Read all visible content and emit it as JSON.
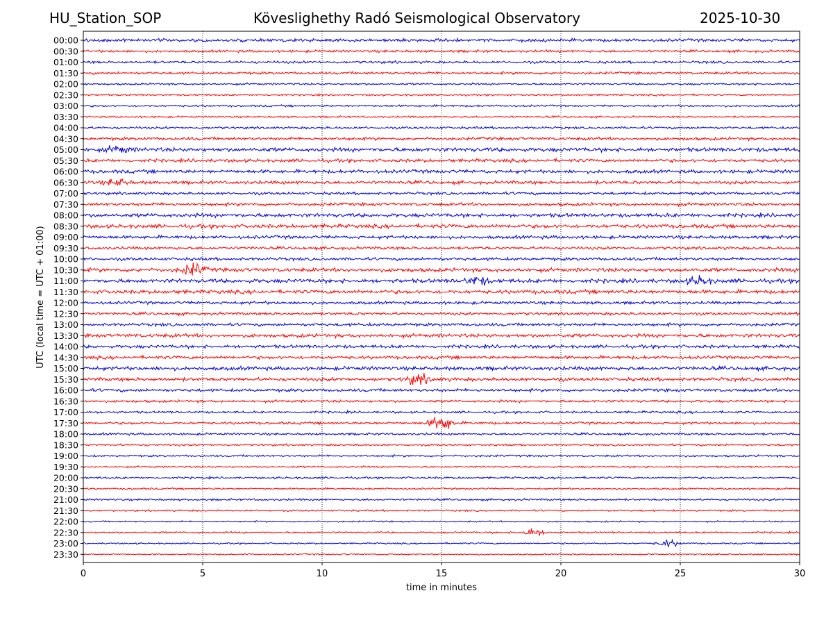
{
  "header": {
    "station": "HU_Station_SOP",
    "observatory": "Köveslighethy Radó Seismological Observatory",
    "date": "2025-10-30"
  },
  "chart_data": {
    "type": "line",
    "title": "Köveslighethy Radó Seismological Observatory",
    "xlabel": "time in minutes",
    "ylabel": "UTC (local time = UTC + 01:00)",
    "xlim": [
      0,
      30
    ],
    "xticks": [
      "0",
      "5",
      "10",
      "15",
      "20",
      "25",
      "30"
    ],
    "xtick_values": [
      0,
      5,
      10,
      15,
      20,
      25,
      30
    ],
    "row_labels": [
      "00:00",
      "00:30",
      "01:00",
      "01:30",
      "02:00",
      "02:30",
      "03:00",
      "03:30",
      "04:00",
      "04:30",
      "05:00",
      "05:30",
      "06:00",
      "06:30",
      "07:00",
      "07:30",
      "08:00",
      "08:30",
      "09:00",
      "09:30",
      "10:00",
      "10:30",
      "11:00",
      "11:30",
      "12:00",
      "12:30",
      "13:00",
      "13:30",
      "14:00",
      "14:30",
      "15:00",
      "15:30",
      "16:00",
      "16:30",
      "17:00",
      "17:30",
      "18:00",
      "18:30",
      "19:00",
      "19:30",
      "20:00",
      "20:30",
      "21:00",
      "21:30",
      "22:00",
      "22:30",
      "23:00",
      "23:30"
    ],
    "series_colors": [
      "#0000dd",
      "#ff0000"
    ],
    "row_noise_level": [
      0.6,
      0.5,
      0.5,
      0.5,
      0.4,
      0.35,
      0.4,
      0.35,
      0.45,
      0.6,
      0.8,
      0.65,
      0.7,
      0.65,
      0.55,
      0.6,
      0.75,
      0.75,
      0.65,
      0.55,
      0.6,
      0.75,
      0.8,
      0.75,
      0.6,
      0.55,
      0.6,
      0.7,
      0.65,
      0.65,
      0.75,
      0.7,
      0.6,
      0.5,
      0.45,
      0.5,
      0.45,
      0.4,
      0.4,
      0.35,
      0.4,
      0.35,
      0.4,
      0.35,
      0.3,
      0.35,
      0.3,
      0.3
    ],
    "events": [
      {
        "row": "10:30",
        "minute": 4.6,
        "amplitude": 2.2
      },
      {
        "row": "11:00",
        "minute": 16.5,
        "amplitude": 1.6
      },
      {
        "row": "11:00",
        "minute": 25.8,
        "amplitude": 1.6
      },
      {
        "row": "15:30",
        "minute": 14.0,
        "amplitude": 2.0
      },
      {
        "row": "17:30",
        "minute": 15.0,
        "amplitude": 3.2
      },
      {
        "row": "22:30",
        "minute": 18.8,
        "amplitude": 1.6
      },
      {
        "row": "23:00",
        "minute": 24.5,
        "amplitude": 1.3
      },
      {
        "row": "06:30",
        "minute": 1.4,
        "amplitude": 1.3
      },
      {
        "row": "05:00",
        "minute": 1.5,
        "amplitude": 1.2
      }
    ]
  }
}
